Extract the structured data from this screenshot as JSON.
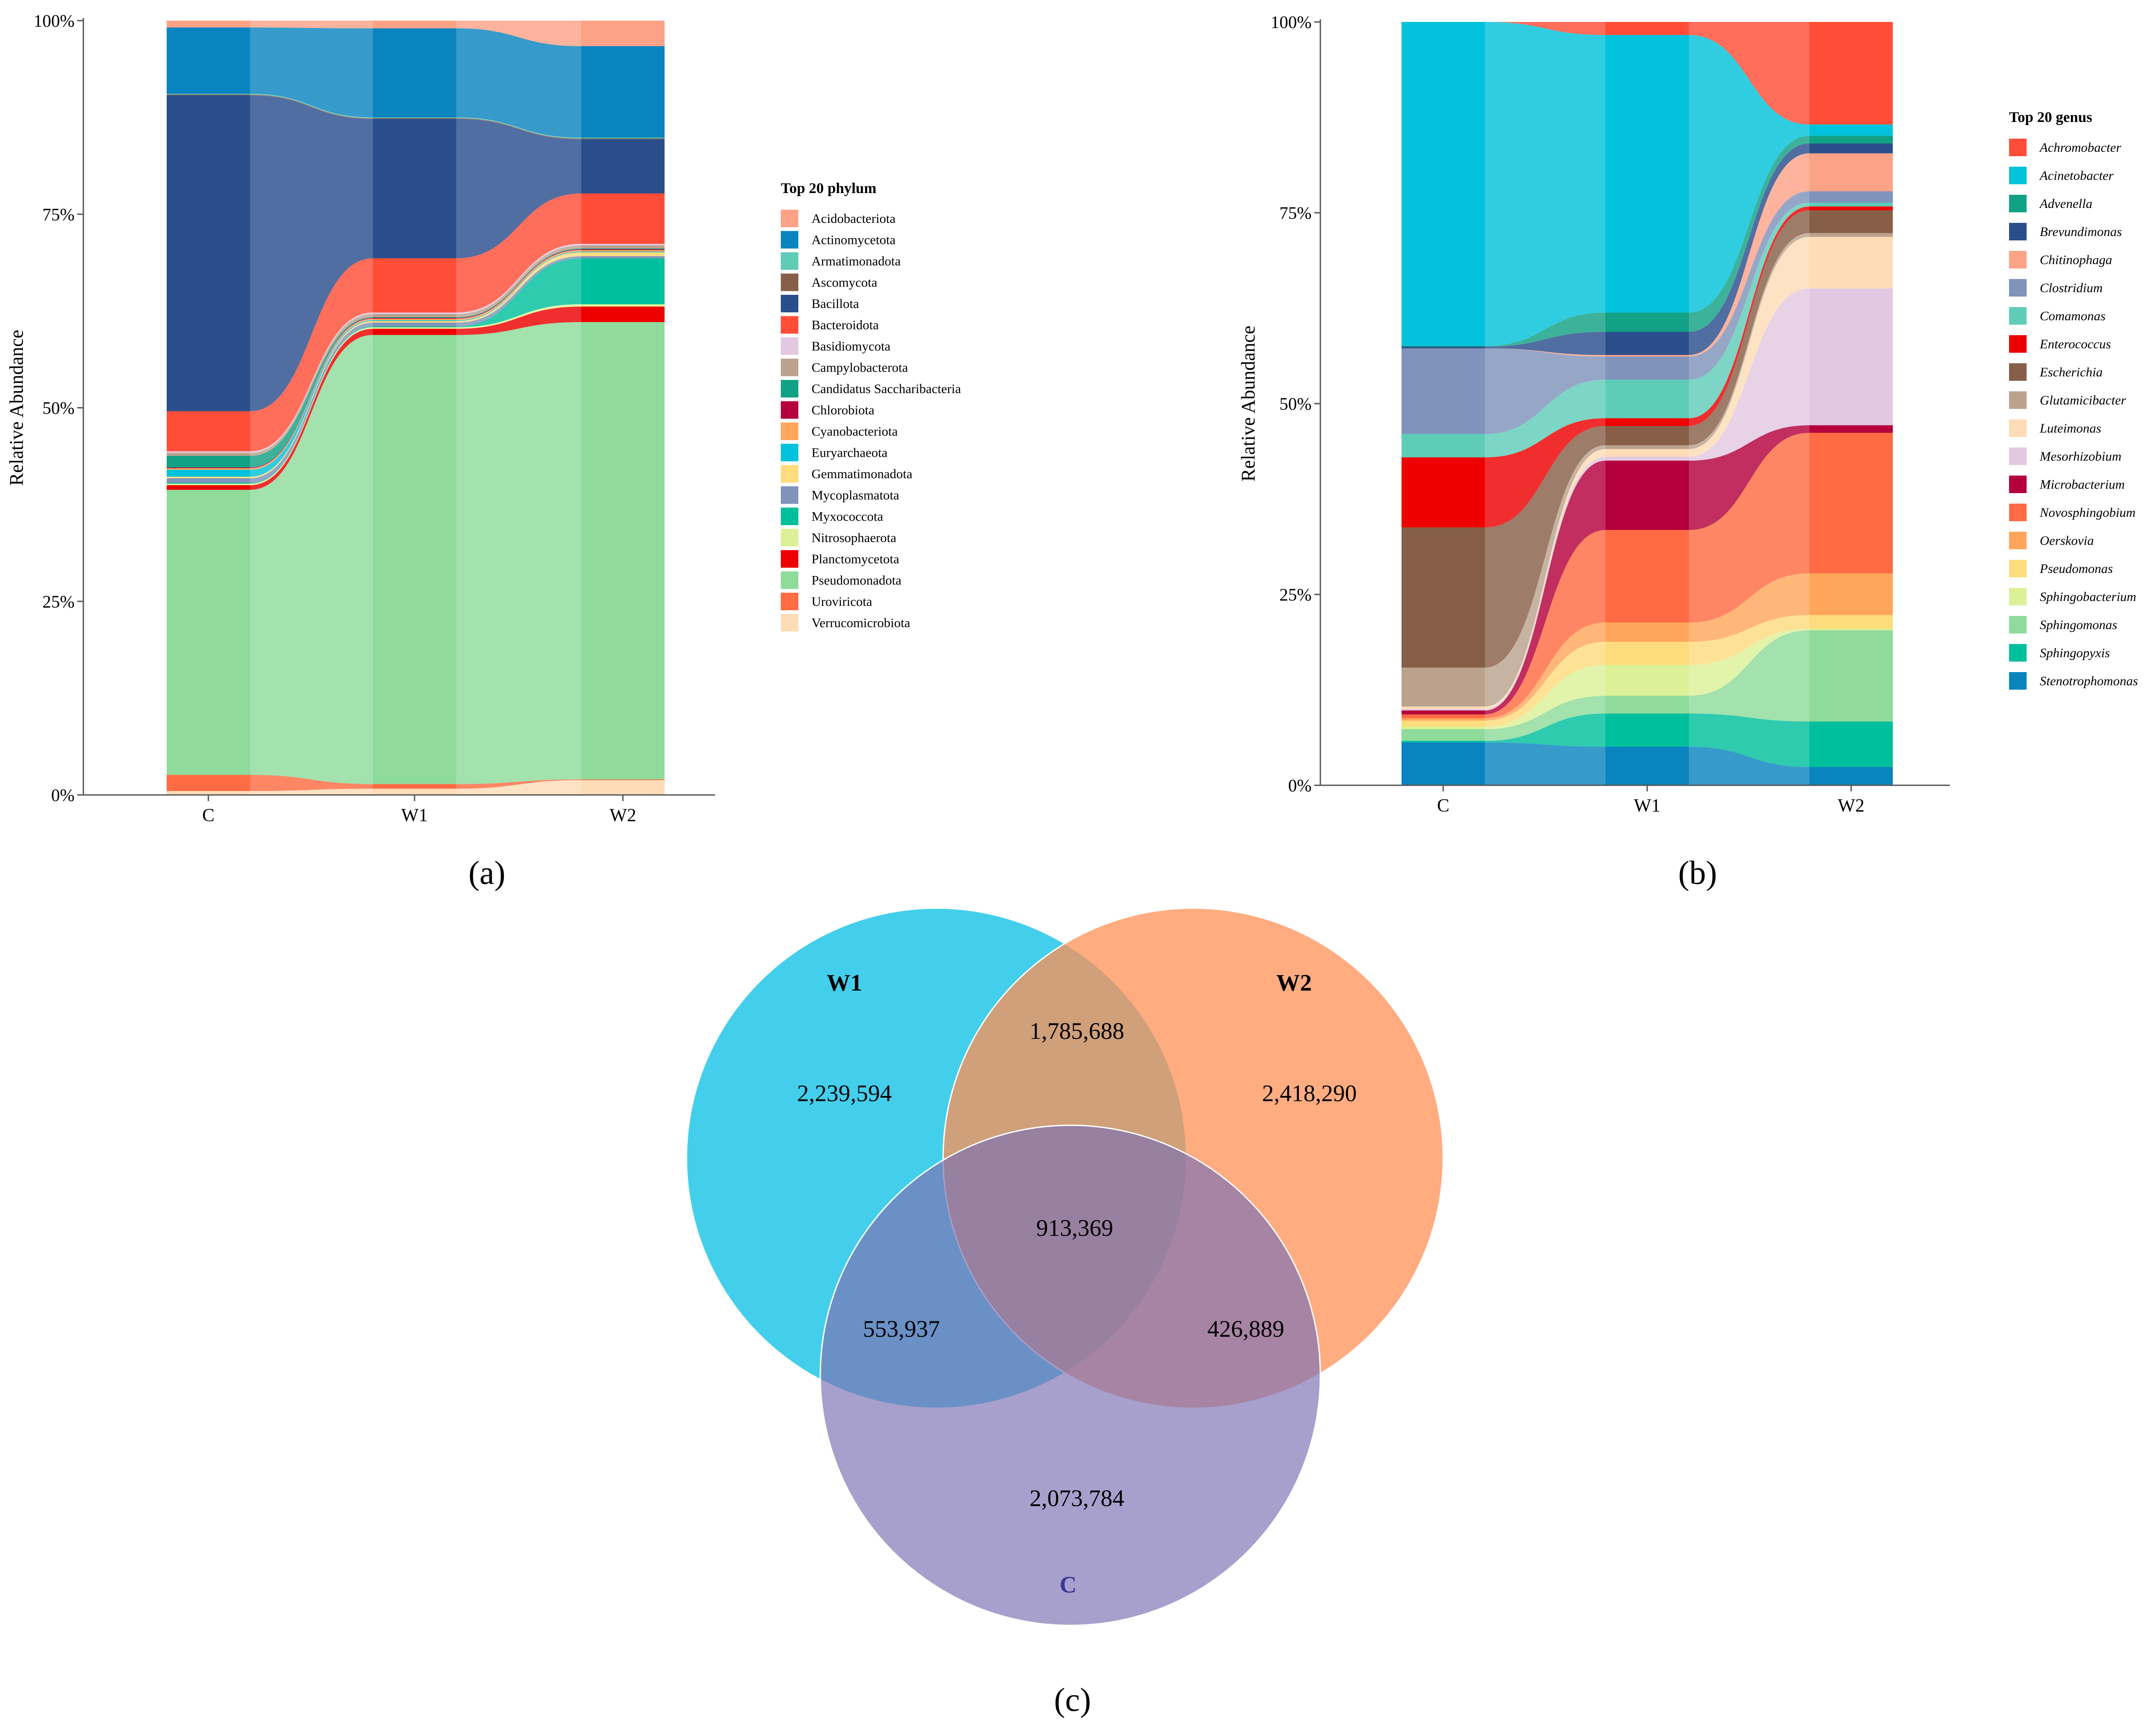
{
  "chart_data": [
    {
      "type": "area",
      "panel_label": "(a)",
      "title": "",
      "ylabel": "Relative Abundance",
      "xlabel": "",
      "categories": [
        "C",
        "W1",
        "W2"
      ],
      "ylim": [
        0,
        100
      ],
      "yticks": [
        "0%",
        "25%",
        "50%",
        "75%",
        "100%"
      ],
      "legend_title": "Top 20 phylum",
      "legend_position": "right",
      "series": [
        {
          "name": "Acidobacteriota",
          "color": "#FCA287",
          "values": [
            0.9,
            1.0,
            3.3
          ]
        },
        {
          "name": "Actinomycetota",
          "color": "#0A84BF",
          "values": [
            8.6,
            11.5,
            11.8
          ]
        },
        {
          "name": "Armatimonadota",
          "color": "#5FCCB8",
          "values": [
            0.1,
            0.1,
            0.1
          ]
        },
        {
          "name": "Ascomycota",
          "color": "#875F48",
          "values": [
            0.1,
            0.1,
            0.1
          ]
        },
        {
          "name": "Bacillota",
          "color": "#2A4E8C",
          "values": [
            41.0,
            18.0,
            7.0
          ]
        },
        {
          "name": "Bacteroidota",
          "color": "#FF4D37",
          "values": [
            5.2,
            7.0,
            6.5
          ]
        },
        {
          "name": "Basidiomycota",
          "color": "#E2C8E0",
          "values": [
            0.2,
            0.2,
            0.2
          ]
        },
        {
          "name": "Campylobacterota",
          "color": "#BBA28D",
          "values": [
            0.4,
            0.4,
            0.4
          ]
        },
        {
          "name": "Candidatus Saccharibacteria",
          "color": "#11A184",
          "values": [
            1.5,
            0.1,
            0.1
          ]
        },
        {
          "name": "Chlorobiota",
          "color": "#B4003C",
          "values": [
            0.1,
            0.1,
            0.1
          ]
        },
        {
          "name": "Cyanobacteriota",
          "color": "#FFA65C",
          "values": [
            0.2,
            0.2,
            0.2
          ]
        },
        {
          "name": "Euryarchaeota",
          "color": "#03C2DB",
          "values": [
            0.9,
            0.1,
            0.1
          ]
        },
        {
          "name": "Gemmatimonadota",
          "color": "#FDDC7E",
          "values": [
            0.2,
            0.2,
            0.5
          ]
        },
        {
          "name": "Mycoplasmatota",
          "color": "#7F93BB",
          "values": [
            0.6,
            0.5,
            0.3
          ]
        },
        {
          "name": "Myxococcota",
          "color": "#00BF9C",
          "values": [
            0.1,
            0.1,
            5.9
          ]
        },
        {
          "name": "Nitrosophaerota",
          "color": "#DCF197",
          "values": [
            0.2,
            0.2,
            0.3
          ]
        },
        {
          "name": "Planctomycetota",
          "color": "#EE0000",
          "values": [
            0.6,
            0.8,
            2.0
          ]
        },
        {
          "name": "Pseudomonadota",
          "color": "#8FDB9B",
          "values": [
            37.0,
            58.0,
            59.0
          ]
        },
        {
          "name": "Uroviricota",
          "color": "#FF6B42",
          "values": [
            2.1,
            0.6,
            0.1
          ]
        },
        {
          "name": "Verrucomicrobiota",
          "color": "#FDDCB7",
          "values": [
            0.5,
            0.8,
            1.9
          ]
        }
      ]
    },
    {
      "type": "area",
      "panel_label": "(b)",
      "title": "",
      "ylabel": "Relative Abundance",
      "xlabel": "",
      "categories": [
        "C",
        "W1",
        "W2"
      ],
      "ylim": [
        0,
        100
      ],
      "yticks": [
        "0%",
        "25%",
        "50%",
        "75%",
        "100%"
      ],
      "legend_title": "Top 20 genus",
      "legend_position": "right",
      "series": [
        {
          "name": "Achromobacter",
          "color": "#FF4D37",
          "values": [
            0.0,
            1.7,
            13.5
          ]
        },
        {
          "name": "Acinetobacter",
          "color": "#03C2DB",
          "values": [
            41.6,
            36.0,
            1.5
          ]
        },
        {
          "name": "Advenella",
          "color": "#11A184",
          "values": [
            0.1,
            2.5,
            1.0
          ]
        },
        {
          "name": "Brevundimonas",
          "color": "#2A4E8C",
          "values": [
            0.2,
            3.0,
            1.3
          ]
        },
        {
          "name": "Chitinophaga",
          "color": "#FCA287",
          "values": [
            0.0,
            0.2,
            5.0
          ]
        },
        {
          "name": "Clostridium",
          "color": "#7F93BB",
          "values": [
            11.0,
            3.0,
            1.5
          ]
        },
        {
          "name": "Comamonas",
          "color": "#5FCCB8",
          "values": [
            3.0,
            5.0,
            0.5
          ]
        },
        {
          "name": "Enterococcus",
          "color": "#EE0000",
          "values": [
            9.0,
            1.0,
            0.5
          ]
        },
        {
          "name": "Escherichia",
          "color": "#875F48",
          "values": [
            18.0,
            2.5,
            3.0
          ]
        },
        {
          "name": "Glutamicibacter",
          "color": "#BBA28D",
          "values": [
            5.0,
            0.5,
            0.5
          ]
        },
        {
          "name": "Luteimonas",
          "color": "#FDDCB7",
          "values": [
            0.3,
            1.0,
            6.8
          ]
        },
        {
          "name": "Mesorhizobium",
          "color": "#E2C8E0",
          "values": [
            0.2,
            0.5,
            18.0
          ]
        },
        {
          "name": "Microbacterium",
          "color": "#B4003C",
          "values": [
            0.5,
            9.0,
            1.0
          ]
        },
        {
          "name": "Novosphingobium",
          "color": "#FF6B42",
          "values": [
            0.5,
            12.0,
            18.5
          ]
        },
        {
          "name": "Oerskovia",
          "color": "#FFA65C",
          "values": [
            0.3,
            2.5,
            5.5
          ]
        },
        {
          "name": "Pseudomonas",
          "color": "#FDDC7E",
          "values": [
            0.8,
            3.0,
            1.8
          ]
        },
        {
          "name": "Sphingobacterium",
          "color": "#DCF197",
          "values": [
            0.3,
            4.0,
            0.2
          ]
        },
        {
          "name": "Sphingomonas",
          "color": "#8FDB9B",
          "values": [
            1.5,
            2.3,
            12.0
          ]
        },
        {
          "name": "Sphingopyxis",
          "color": "#00BF9C",
          "values": [
            0.2,
            4.3,
            6.0
          ]
        },
        {
          "name": "Stenotrophomonas",
          "color": "#0A84BF",
          "values": [
            5.5,
            5.0,
            2.4
          ]
        }
      ]
    },
    {
      "type": "venn",
      "panel_label": "(c)",
      "title": "",
      "sets": [
        {
          "name": "W1",
          "color": "#1AC4E8"
        },
        {
          "name": "W2",
          "color": "#FF9055"
        },
        {
          "name": "C",
          "color": "#7E72B4"
        }
      ],
      "regions": [
        {
          "sets": [
            "W1"
          ],
          "label": "2,239,594",
          "value": 2239594
        },
        {
          "sets": [
            "W2"
          ],
          "label": "2,418,290",
          "value": 2418290
        },
        {
          "sets": [
            "C"
          ],
          "label": "2,073,784",
          "value": 2073784
        },
        {
          "sets": [
            "W1",
            "W2"
          ],
          "label": "1,785,688",
          "value": 1785688
        },
        {
          "sets": [
            "W1",
            "C"
          ],
          "label": "553,937",
          "value": 553937
        },
        {
          "sets": [
            "W2",
            "C"
          ],
          "label": "426,889",
          "value": 426889
        },
        {
          "sets": [
            "W1",
            "W2",
            "C"
          ],
          "label": "913,369",
          "value": 913369
        }
      ]
    }
  ]
}
